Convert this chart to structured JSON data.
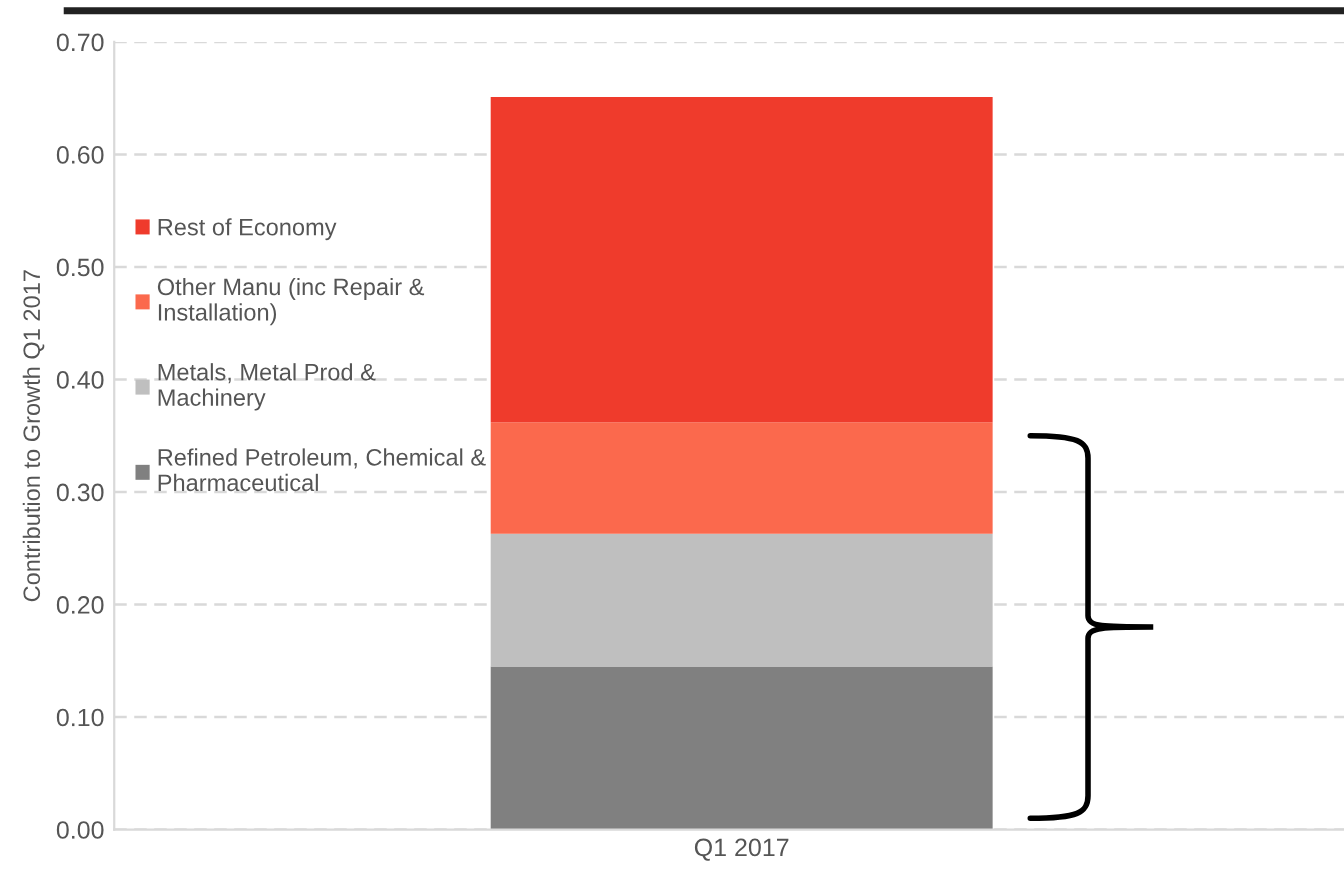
{
  "chart_data": {
    "type": "bar",
    "stacked": true,
    "ylabel": "Contribution to Growth Q1 2017",
    "categories": [
      "Q1 2017"
    ],
    "series": [
      {
        "name": "Refined Petroleum, Chemical &\nPharmaceutical",
        "color": "#808080",
        "values": [
          0.145
        ]
      },
      {
        "name": "Metals, Metal Prod &\nMachinery",
        "color": "#bfbfbf",
        "values": [
          0.118
        ]
      },
      {
        "name": "Other Manu (inc Repair &\nInstallation)",
        "color": "#fb694d",
        "values": [
          0.099
        ]
      },
      {
        "name": "Rest of Economy",
        "color": "#ef3b2c",
        "values": [
          0.289
        ]
      }
    ],
    "ylim": [
      0,
      0.7
    ],
    "yticks": [
      {
        "value": 0,
        "label": "0.00"
      },
      {
        "value": 0.1,
        "label": "0.10"
      },
      {
        "value": 0.2,
        "label": "0.20"
      },
      {
        "value": 0.3,
        "label": "0.30"
      },
      {
        "value": 0.4,
        "label": "0.40"
      },
      {
        "value": 0.5,
        "label": "0.50"
      },
      {
        "value": 0.6,
        "label": "0.60"
      },
      {
        "value": 0.7,
        "label": "0.70"
      }
    ],
    "grid": "y",
    "legend": "left"
  }
}
